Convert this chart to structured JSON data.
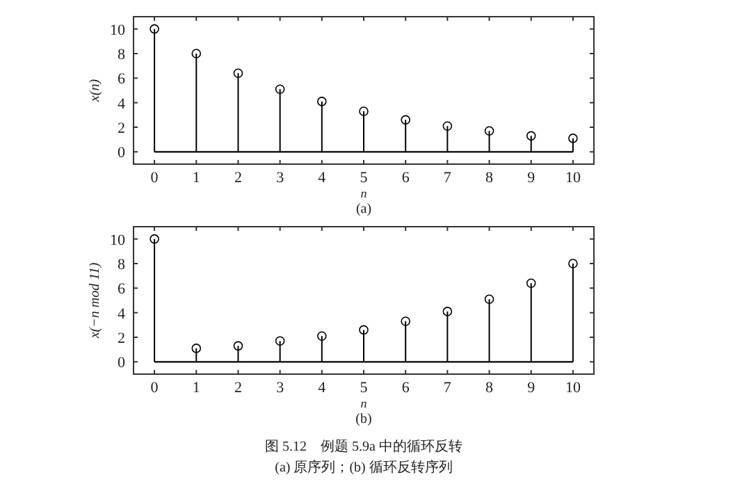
{
  "chart_data": [
    {
      "type": "lollipop",
      "xlabel": "n",
      "ylabel": "x(n)",
      "x": [
        0,
        1,
        2,
        3,
        4,
        5,
        6,
        7,
        8,
        9,
        10
      ],
      "values": [
        10,
        8,
        6.4,
        5.1,
        4.1,
        3.3,
        2.6,
        2.1,
        1.7,
        1.3,
        1.1
      ],
      "color": "#000000",
      "marker": "circle",
      "xlim": [
        -0.5,
        10.5
      ],
      "ylim": [
        -1,
        11
      ],
      "xticks": [
        0,
        1,
        2,
        3,
        4,
        5,
        6,
        7,
        8,
        9,
        10
      ],
      "yticks": [
        0,
        2,
        4,
        6,
        8,
        10
      ],
      "annotations": [
        "(a)"
      ]
    },
    {
      "type": "lollipop",
      "xlabel": "n",
      "ylabel": "x(−n mod 11)",
      "x": [
        0,
        1,
        2,
        3,
        4,
        5,
        6,
        7,
        8,
        9,
        10
      ],
      "values": [
        10,
        1.1,
        1.3,
        1.7,
        2.1,
        2.6,
        3.3,
        4.1,
        5.1,
        6.4,
        8
      ],
      "color": "#000000",
      "marker": "circle",
      "xlim": [
        -0.5,
        10.5
      ],
      "ylim": [
        -1,
        11
      ],
      "xticks": [
        0,
        1,
        2,
        3,
        4,
        5,
        6,
        7,
        8,
        9,
        10
      ],
      "yticks": [
        0,
        2,
        4,
        6,
        8,
        10
      ],
      "annotations": [
        "(b)",
        "图 5.12　例题 5.9a 中的循环反转",
        "(a) 原序列；(b) 循环反转序列"
      ]
    }
  ]
}
